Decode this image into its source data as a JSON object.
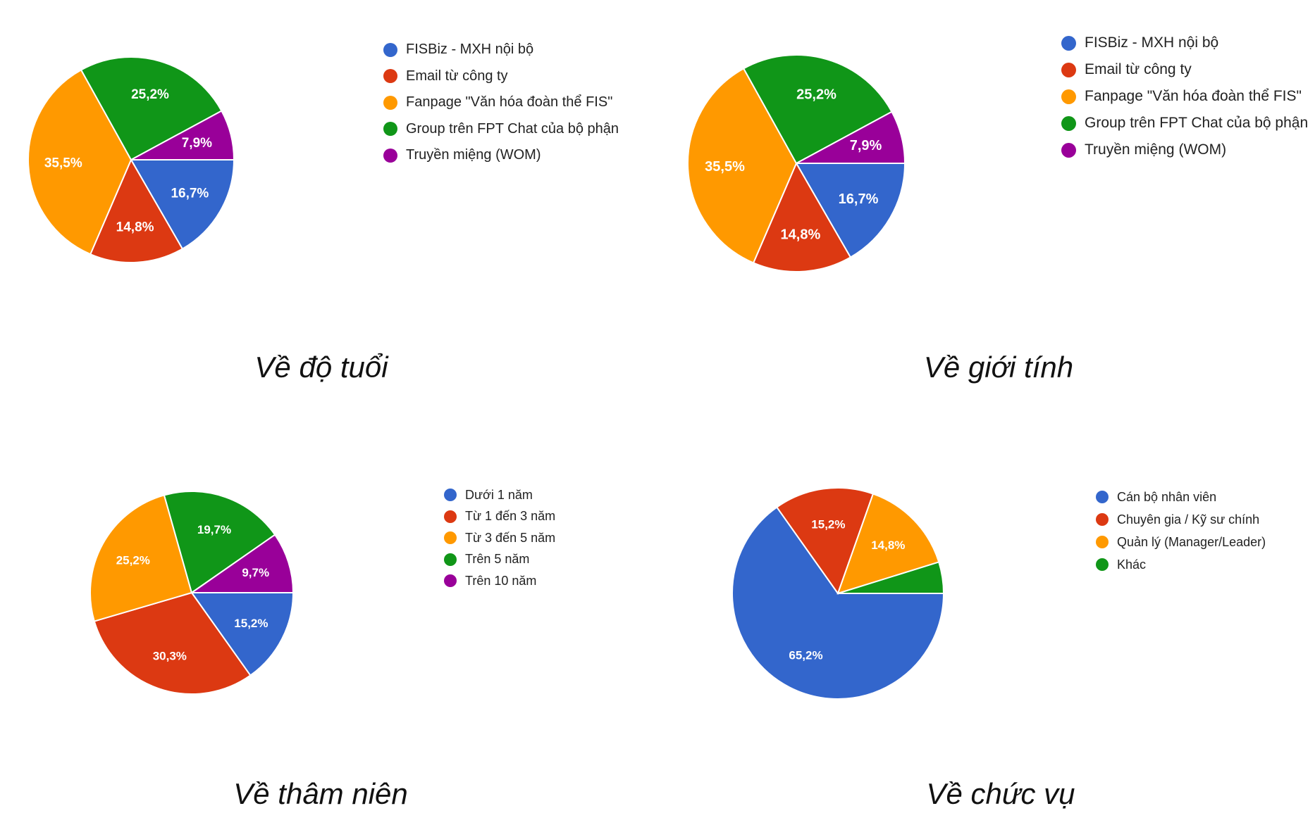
{
  "colors": {
    "blue": "#3366cc",
    "red": "#dc3912",
    "orange": "#ff9900",
    "green": "#109618",
    "purple": "#990099"
  },
  "chart_data": [
    {
      "type": "pie",
      "caption": "Về độ tuổi",
      "title": "",
      "legend_position": "right",
      "labels": [
        "FISBiz - MXH nội bộ",
        "Email từ công ty",
        "Fanpage \"Văn hóa đoàn thể FIS\"",
        "Group trên FPT Chat của bộ phận",
        "Truyền miệng (WOM)"
      ],
      "values": [
        16.7,
        14.8,
        35.5,
        25.2,
        7.9
      ],
      "value_labels": [
        "16,7%",
        "14,8%",
        "35,5%",
        "25,2%",
        "7,9%"
      ],
      "colors": [
        "#3366cc",
        "#dc3912",
        "#ff9900",
        "#109618",
        "#990099"
      ]
    },
    {
      "type": "pie",
      "caption": "Về giới tính",
      "title": "",
      "legend_position": "right",
      "labels": [
        "FISBiz - MXH nội bộ",
        "Email từ công ty",
        "Fanpage \"Văn hóa đoàn thể FIS\"",
        "Group trên FPT Chat của bộ phận",
        "Truyền miệng (WOM)"
      ],
      "values": [
        16.7,
        14.8,
        35.5,
        25.2,
        7.9
      ],
      "value_labels": [
        "16,7%",
        "14,8%",
        "35,5%",
        "25,2%",
        "7,9%"
      ],
      "colors": [
        "#3366cc",
        "#dc3912",
        "#ff9900",
        "#109618",
        "#990099"
      ]
    },
    {
      "type": "pie",
      "caption": "Về thâm niên",
      "title": "",
      "legend_position": "right",
      "labels": [
        "Dưới 1 năm",
        "Từ 1 đến 3 năm",
        "Từ 3 đến 5 năm",
        "Trên 5 năm",
        "Trên 10 năm"
      ],
      "values": [
        15.2,
        30.3,
        25.2,
        19.7,
        9.7
      ],
      "value_labels": [
        "15,2%",
        "30,3%",
        "25,2%",
        "19,7%",
        "9,7%"
      ],
      "colors": [
        "#3366cc",
        "#dc3912",
        "#ff9900",
        "#109618",
        "#990099"
      ]
    },
    {
      "type": "pie",
      "caption": "Về chức vụ",
      "title": "",
      "legend_position": "right",
      "labels": [
        "Cán bộ nhân viên",
        "Chuyên gia / Kỹ sư chính",
        "Quản lý (Manager/Leader)",
        "Khác"
      ],
      "values": [
        65.2,
        15.2,
        14.8,
        4.8
      ],
      "value_labels": [
        "65,2%",
        "15,2%",
        "14,8%",
        ""
      ],
      "colors": [
        "#3366cc",
        "#dc3912",
        "#ff9900",
        "#109618"
      ]
    }
  ]
}
